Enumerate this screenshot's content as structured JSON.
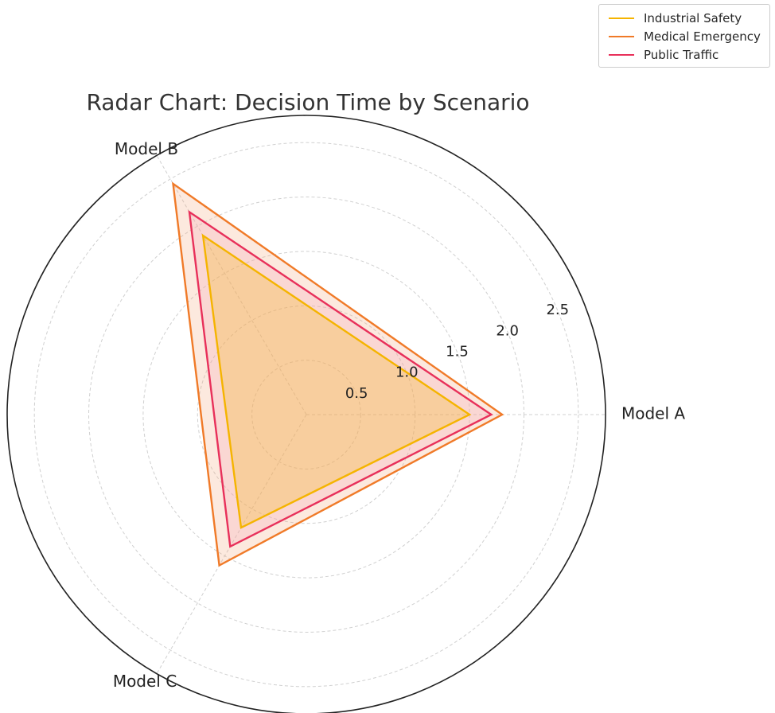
{
  "chart_data": {
    "type": "radar",
    "title": "Radar Chart: Decision Time by Scenario",
    "axes": [
      "Model A",
      "Model B",
      "Model C"
    ],
    "r_ticks": [
      0.5,
      1.0,
      1.5,
      2.0,
      2.5
    ],
    "r_tick_labels": [
      "0.5",
      "1.0",
      "1.5",
      "2.0",
      "2.5"
    ],
    "r_max": 2.75,
    "grid": true,
    "legend_position": "top-right",
    "series": [
      {
        "name": "Industrial Safety",
        "values": [
          1.5,
          1.9,
          1.2
        ],
        "color": "#f5b400",
        "fill": "#f5b400"
      },
      {
        "name": "Medical Emergency",
        "values": [
          1.8,
          2.45,
          1.6
        ],
        "color": "#f07a28",
        "fill": "#f5a77a"
      },
      {
        "name": "Public Traffic",
        "values": [
          1.7,
          2.15,
          1.4
        ],
        "color": "#e8305a",
        "fill": "#f2a4b4"
      }
    ]
  }
}
